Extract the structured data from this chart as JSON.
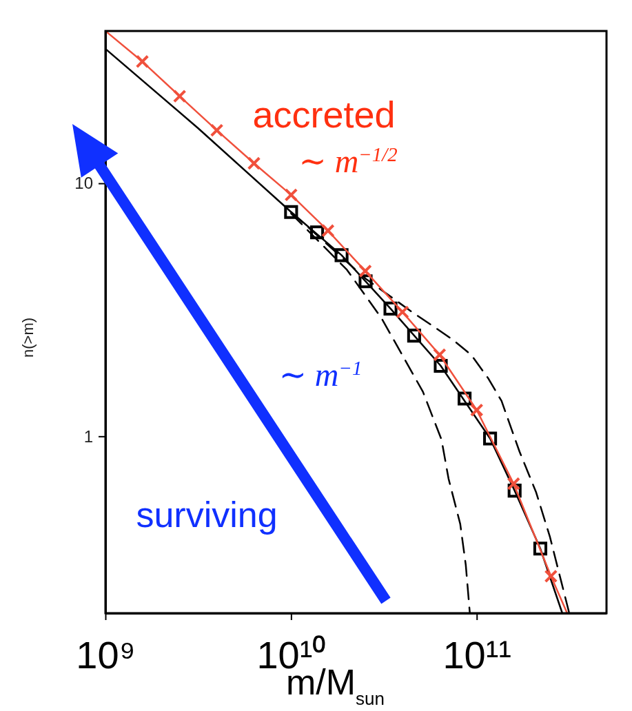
{
  "chart_data": {
    "type": "line",
    "xlabel": "m/M$_{sun}$",
    "ylabel": "n(>m)",
    "log": "xy",
    "grid": false,
    "xlim": [
      1000000000.0,
      500000000000.0
    ],
    "ylim": [
      0.2,
      40
    ],
    "xticks": [
      {
        "value": 1000000000.0,
        "label": "10⁹"
      },
      {
        "value": 10000000000.0,
        "label": "10¹⁰"
      },
      {
        "value": 100000000000.0,
        "label": "10¹¹"
      }
    ],
    "yticks": [
      1,
      10
    ],
    "series": [
      {
        "color": "#000000",
        "line_style": "solid",
        "x": [
          1000000000.0,
          3160000000.0,
          10000000000.0,
          18700000000.0,
          34300000000.0,
          64000000000.0,
          118000000000.0,
          160000000000.0,
          220000000000.0,
          289000000000.0
        ],
        "values": [
          34,
          16.5,
          7.7,
          5.2,
          3.2,
          1.9,
          0.98,
          0.61,
          0.36,
          0.2
        ]
      },
      {
        "color": "#000000",
        "line_style": "dashed",
        "x": [
          10000000000.0,
          20000000000.0,
          30700000000.0,
          41000000000.0,
          51300000000.0,
          64600000000.0,
          70500000000.0,
          81500000000.0,
          87300000000.0,
          91800000000.0
        ],
        "values": [
          7.6,
          4.55,
          2.93,
          2.01,
          1.5,
          0.97,
          0.68,
          0.45,
          0.31,
          0.2
        ]
      },
      {
        "color": "#000000",
        "line_style": "dashed",
        "x": [
          10000000000.0,
          25200000000.0,
          44800000000.0,
          59300000000.0,
          74800000000.0,
          93300000000.0,
          115000000000.0,
          136000000000.0,
          170000000000.0,
          209000000000.0,
          248000000000.0,
          284000000000.0,
          315000000000.0
        ],
        "values": [
          7.7,
          4.2,
          3.1,
          2.7,
          2.4,
          2.1,
          1.7,
          1.38,
          0.87,
          0.6,
          0.4,
          0.27,
          0.2
        ]
      },
      {
        "type": "scatter",
        "color": "#000000",
        "marker": "square",
        "x": [
          10000000000.0,
          13800000000.0,
          18700000000.0,
          25200000000.0,
          34300000000.0,
          46000000000.0,
          64000000000.0,
          86000000000.0,
          118000000000.0,
          160000000000.0,
          220000000000.0
        ],
        "values": [
          7.7,
          6.4,
          5.2,
          4.1,
          3.2,
          2.5,
          1.9,
          1.41,
          0.98,
          0.61,
          0.36
        ]
      },
      {
        "color": "#f0503c",
        "line_style": "solid",
        "x": [
          1000000000.0,
          1580000000.0,
          2510000000.0,
          3980000000.0,
          6310000000.0,
          10000000000.0,
          15800000000.0,
          25100000000.0,
          39800000000.0,
          63100000000.0,
          100000000000.0,
          158000000000.0,
          251000000000.0,
          307000000000.0
        ],
        "values": [
          40,
          30.3,
          22.1,
          16.2,
          12,
          9,
          6.5,
          4.5,
          3.1,
          2.1,
          1.27,
          0.65,
          0.28,
          0.2
        ]
      },
      {
        "type": "scatter",
        "color": "#f0503c",
        "marker": "cross",
        "x": [
          1580000000.0,
          2510000000.0,
          3980000000.0,
          6310000000.0,
          10000000000.0,
          15800000000.0,
          25100000000.0,
          39800000000.0,
          63100000000.0,
          100000000000.0,
          158000000000.0,
          251000000000.0
        ],
        "values": [
          30.3,
          22.1,
          16.2,
          12,
          9,
          6.5,
          4.5,
          3.1,
          2.1,
          1.27,
          0.65,
          0.28
        ]
      }
    ],
    "annotations": [
      "accreted",
      "∼ m$^{−1/2}$",
      "∼ m$^{−1}$",
      "surviving"
    ]
  }
}
